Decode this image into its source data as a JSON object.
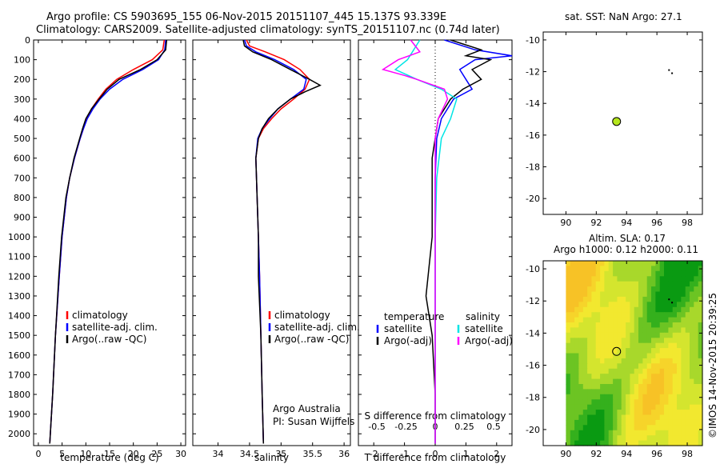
{
  "header": {
    "line1": "Argo profile: CS 5903695_155 06-Nov-2015 20151107_445 15.137S 93.339E",
    "line2": "Climatology: CARS2009. Satellite-adjusted climatology: synTS_20151107.nc (0.74d later)"
  },
  "watermark": "©IMOS 14-Nov-2015 20:39:25",
  "colors": {
    "climatology": "#ff0000",
    "satellite": "#0000ff",
    "argo": "#000000",
    "sal_satellite": "#00e5e5",
    "sal_argo": "#ff00ff",
    "marker": "#b5e61d"
  },
  "chart_data": [
    {
      "type": "line",
      "name": "temperature-profile",
      "xlabel": "temperature (deg C)",
      "xlim": [
        -1,
        31
      ],
      "xticks": [
        "0",
        "5",
        "10",
        "15",
        "20",
        "25",
        "30"
      ],
      "xtick_values": [
        0,
        5,
        10,
        15,
        20,
        25,
        30
      ],
      "ylim": [
        2060,
        0
      ],
      "yticks": [
        "0",
        "100",
        "200",
        "300",
        "400",
        "500",
        "600",
        "700",
        "800",
        "900",
        "1000",
        "1100",
        "1200",
        "1300",
        "1400",
        "1500",
        "1600",
        "1700",
        "1800",
        "1900",
        "2000"
      ],
      "ytick_values": [
        0,
        100,
        200,
        300,
        400,
        500,
        600,
        700,
        800,
        900,
        1000,
        1100,
        1200,
        1300,
        1400,
        1500,
        1600,
        1700,
        1800,
        1900,
        2000
      ],
      "legend": [
        "climatology",
        "satellite-adj. clim.",
        "Argo(..raw -QC)"
      ],
      "series": [
        {
          "name": "climatology",
          "color": "#ff0000",
          "depth": [
            0,
            50,
            100,
            150,
            200,
            250,
            300,
            350,
            400,
            450,
            500,
            600,
            700,
            800,
            1000,
            1200,
            1500,
            1800,
            2050
          ],
          "values": [
            26.5,
            26.2,
            24.0,
            20.0,
            16.5,
            14.2,
            12.6,
            11.2,
            10.2,
            9.5,
            8.8,
            7.6,
            6.6,
            5.9,
            5.0,
            4.4,
            3.6,
            3.0,
            2.4
          ]
        },
        {
          "name": "satellite-adj. clim.",
          "color": "#0000ff",
          "depth": [
            0,
            50,
            100,
            150,
            200,
            250,
            300,
            350,
            400,
            450,
            500,
            600,
            700,
            800,
            1000,
            1200,
            1500,
            1800,
            2050
          ],
          "values": [
            26.8,
            26.6,
            25.3,
            22.0,
            17.8,
            15.0,
            13.0,
            11.5,
            10.3,
            9.5,
            8.8,
            7.6,
            6.6,
            5.9,
            5.0,
            4.4,
            3.6,
            3.0,
            2.4
          ]
        },
        {
          "name": "Argo(..raw -QC)",
          "color": "#000000",
          "depth": [
            0,
            50,
            100,
            150,
            200,
            250,
            300,
            350,
            400,
            450,
            500,
            600,
            700,
            800,
            1000,
            1200,
            1500,
            1800,
            2050
          ],
          "values": [
            27.0,
            26.8,
            25.0,
            21.5,
            17.0,
            14.5,
            12.8,
            11.2,
            10.0,
            9.3,
            8.7,
            7.5,
            6.6,
            5.8,
            4.9,
            4.3,
            3.6,
            3.0,
            2.4
          ]
        }
      ]
    },
    {
      "type": "line",
      "name": "salinity-profile",
      "xlabel": "salinity",
      "xlim": [
        33.6,
        36.1
      ],
      "xticks": [
        "34",
        "34.5",
        "35",
        "35.5",
        "36"
      ],
      "xtick_values": [
        34,
        34.5,
        35,
        35.5,
        36
      ],
      "ylim": [
        2060,
        0
      ],
      "legend": [
        "climatology",
        "satellite-adj. clim.",
        "Argo(..raw -QC)"
      ],
      "annotation": [
        "Argo Australia",
        "PI: Susan Wijffels"
      ],
      "series": [
        {
          "name": "climatology",
          "color": "#ff0000",
          "depth": [
            0,
            30,
            60,
            100,
            150,
            200,
            250,
            300,
            350,
            400,
            450,
            500,
            600,
            800,
            1000,
            1200,
            1500,
            1800,
            2050
          ],
          "values": [
            34.45,
            34.5,
            34.75,
            35.05,
            35.3,
            35.45,
            35.38,
            35.2,
            35.0,
            34.85,
            34.72,
            34.64,
            34.6,
            34.62,
            34.64,
            34.66,
            34.68,
            34.7,
            34.72
          ]
        },
        {
          "name": "satellite-adj. clim.",
          "color": "#0000ff",
          "depth": [
            0,
            30,
            60,
            100,
            150,
            200,
            250,
            300,
            350,
            400,
            450,
            500,
            600,
            800,
            1000,
            1200,
            1500,
            1800,
            2050
          ],
          "values": [
            34.42,
            34.45,
            34.6,
            34.9,
            35.2,
            35.4,
            35.36,
            35.15,
            34.95,
            34.82,
            34.7,
            34.63,
            34.6,
            34.62,
            34.64,
            34.66,
            34.68,
            34.7,
            34.72
          ]
        },
        {
          "name": "Argo(..raw -QC)",
          "color": "#000000",
          "depth": [
            0,
            30,
            60,
            100,
            150,
            200,
            230,
            260,
            300,
            350,
            400,
            450,
            500,
            600,
            800,
            1000,
            1200,
            1500,
            1800,
            2050
          ],
          "values": [
            34.4,
            34.42,
            34.55,
            34.85,
            35.15,
            35.45,
            35.62,
            35.4,
            35.15,
            34.95,
            34.8,
            34.7,
            34.64,
            34.6,
            34.62,
            34.64,
            34.64,
            34.68,
            34.7,
            34.72
          ]
        }
      ]
    },
    {
      "type": "line",
      "name": "difference-profile",
      "xlabel": "T difference from climatology",
      "xlabel_top": "S difference from climatology",
      "xlim": [
        -2.5,
        2.5
      ],
      "xticks": [
        "-2",
        "-1",
        "0",
        "1",
        "2"
      ],
      "xtick_values": [
        -2,
        -1,
        0,
        1,
        2
      ],
      "xticks_s": [
        "-0.5",
        "-0.25",
        "0",
        "0.25",
        "0.5"
      ],
      "xtick_s_values": [
        -1.9,
        -0.95,
        0,
        0.95,
        1.9
      ],
      "ylim": [
        2060,
        0
      ],
      "legend": {
        "temperature": "temperature",
        "salinity": "salinity",
        "items": [
          "satellite",
          "Argo(-adj)",
          "satellite",
          "Argo(-adj)"
        ]
      },
      "series": [
        {
          "name": "temperature satellite",
          "color": "#0000ff",
          "depth": [
            0,
            50,
            80,
            100,
            150,
            200,
            250,
            300,
            400,
            500,
            700,
            1000,
            1500,
            2050
          ],
          "values": [
            0.3,
            1.3,
            2.5,
            1.3,
            0.8,
            1.0,
            1.2,
            0.6,
            0.2,
            0.05,
            0.0,
            0.0,
            0.0,
            0.0
          ]
        },
        {
          "name": "temperature Argo(-adj)",
          "color": "#000000",
          "depth": [
            0,
            50,
            80,
            100,
            150,
            200,
            250,
            300,
            400,
            500,
            600,
            800,
            1000,
            1300,
            1500,
            1800,
            2050
          ],
          "values": [
            0.5,
            1.5,
            1.0,
            1.8,
            1.2,
            1.5,
            0.9,
            0.5,
            0.1,
            0.0,
            -0.1,
            -0.1,
            -0.1,
            -0.3,
            -0.1,
            0.0,
            0.0
          ]
        },
        {
          "name": "salinity satellite",
          "color": "#00e5e5",
          "depth": [
            0,
            50,
            100,
            150,
            200,
            250,
            300,
            400,
            500,
            700,
            1000,
            1500,
            2050
          ],
          "values": [
            -0.5,
            -0.7,
            -0.9,
            -1.3,
            -0.6,
            0.2,
            0.7,
            0.5,
            0.2,
            0.05,
            0.0,
            0.0,
            0.0
          ]
        },
        {
          "name": "salinity Argo(-adj)",
          "color": "#ff00ff",
          "depth": [
            0,
            60,
            100,
            150,
            180,
            200,
            250,
            300,
            400,
            500,
            700,
            1000,
            1500,
            2050
          ],
          "values": [
            -0.8,
            -0.5,
            -1.2,
            -1.7,
            -1.0,
            -0.6,
            0.3,
            0.4,
            0.1,
            0.0,
            0.0,
            0.0,
            0.0,
            0.0
          ]
        }
      ]
    },
    {
      "type": "scatter",
      "name": "sst-map",
      "title": "sat. SST: NaN Argo: 27.1",
      "xlim": [
        88.5,
        99
      ],
      "ylim": [
        -21,
        -9.5
      ],
      "xticks": [
        "90",
        "92",
        "94",
        "96",
        "98"
      ],
      "xtick_values": [
        90,
        92,
        94,
        96,
        98
      ],
      "yticks": [
        "-10",
        "-12",
        "-14",
        "-16",
        "-18",
        "-20"
      ],
      "ytick_values": [
        -10,
        -12,
        -14,
        -16,
        -18,
        -20
      ],
      "points": [
        {
          "lon": 93.34,
          "lat": -15.14
        }
      ],
      "track": [
        {
          "lon": 96.8,
          "lat": -11.9
        },
        {
          "lon": 97.0,
          "lat": -12.1
        }
      ]
    },
    {
      "type": "heatmap",
      "name": "sla-map",
      "title": "Altim. SLA: 0.17",
      "subtitle": "Argo h1000: 0.12 h2000: 0.11",
      "xlim": [
        88.5,
        99
      ],
      "ylim": [
        -21,
        -9.5
      ],
      "xticks": [
        "90",
        "92",
        "94",
        "96",
        "98"
      ],
      "xtick_values": [
        90,
        92,
        94,
        96,
        98
      ],
      "yticks": [
        "-10",
        "-12",
        "-14",
        "-16",
        "-18",
        "-20"
      ],
      "ytick_values": [
        -10,
        -12,
        -14,
        -16,
        -18,
        -20
      ],
      "points": [
        {
          "lon": 93.34,
          "lat": -15.14
        }
      ],
      "track": [
        {
          "lon": 96.8,
          "lat": -11.9
        },
        {
          "lon": 97.0,
          "lat": -12.1
        }
      ]
    }
  ]
}
